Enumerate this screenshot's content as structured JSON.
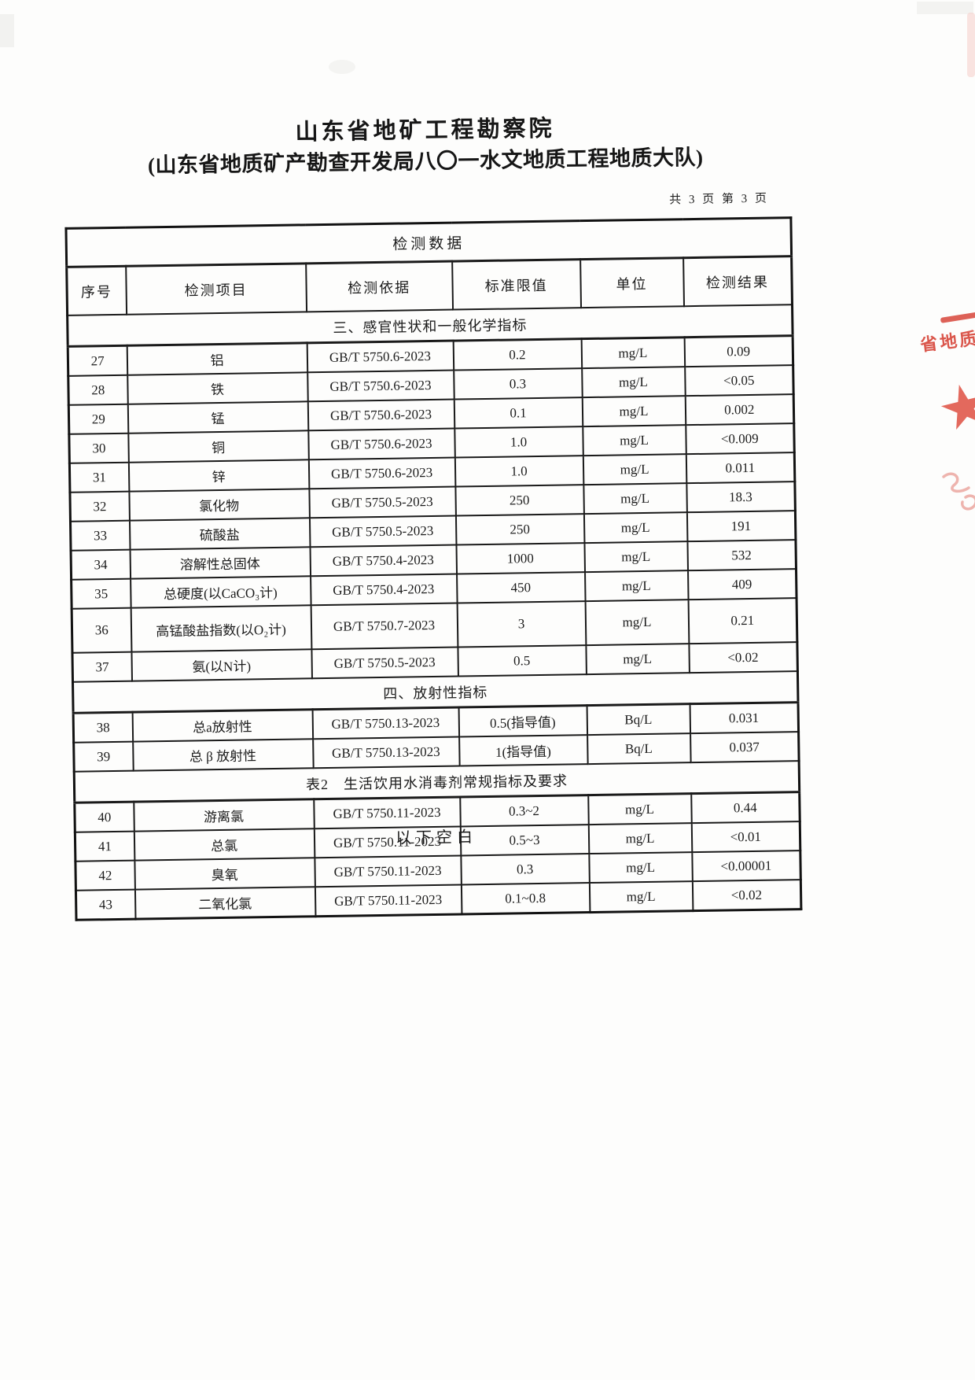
{
  "doc": {
    "org_name": "山东省地矿工程勘察院",
    "org_subtitle": "(山东省地质矿产勘查开发局八〇一水文地质工程地质大队)",
    "page_info": "共 3 页 第 3 页",
    "below_blank_note": "以下空白"
  },
  "table": {
    "caption": "检测数据",
    "columns": [
      "序号",
      "检测项目",
      "检测依据",
      "标准限值",
      "单位",
      "检测结果"
    ],
    "sections": [
      {
        "header": "三、感官性状和一般化学指标",
        "rows": [
          {
            "no": "27",
            "item": "铝",
            "method": "GB/T 5750.6-2023",
            "limit": "0.2",
            "unit": "mg/L",
            "result": "0.09"
          },
          {
            "no": "28",
            "item": "铁",
            "method": "GB/T 5750.6-2023",
            "limit": "0.3",
            "unit": "mg/L",
            "result": "<0.05"
          },
          {
            "no": "29",
            "item": "锰",
            "method": "GB/T 5750.6-2023",
            "limit": "0.1",
            "unit": "mg/L",
            "result": "0.002"
          },
          {
            "no": "30",
            "item": "铜",
            "method": "GB/T 5750.6-2023",
            "limit": "1.0",
            "unit": "mg/L",
            "result": "<0.009"
          },
          {
            "no": "31",
            "item": "锌",
            "method": "GB/T 5750.6-2023",
            "limit": "1.0",
            "unit": "mg/L",
            "result": "0.011"
          },
          {
            "no": "32",
            "item": "氯化物",
            "method": "GB/T 5750.5-2023",
            "limit": "250",
            "unit": "mg/L",
            "result": "18.3"
          },
          {
            "no": "33",
            "item": "硫酸盐",
            "method": "GB/T 5750.5-2023",
            "limit": "250",
            "unit": "mg/L",
            "result": "191"
          },
          {
            "no": "34",
            "item": "溶解性总固体",
            "method": "GB/T 5750.4-2023",
            "limit": "1000",
            "unit": "mg/L",
            "result": "532"
          },
          {
            "no": "35",
            "item": "总硬度(以CaCO₃计)",
            "method": "GB/T 5750.4-2023",
            "limit": "450",
            "unit": "mg/L",
            "result": "409"
          },
          {
            "no": "36",
            "item": "高锰酸盐指数(以O₂计)",
            "method": "GB/T 5750.7-2023",
            "limit": "3",
            "unit": "mg/L",
            "result": "0.21",
            "tall": true
          },
          {
            "no": "37",
            "item": "氨(以N计)",
            "method": "GB/T 5750.5-2023",
            "limit": "0.5",
            "unit": "mg/L",
            "result": "<0.02"
          }
        ]
      },
      {
        "header": "四、放射性指标",
        "rows": [
          {
            "no": "38",
            "item": "总a放射性",
            "method": "GB/T 5750.13-2023",
            "limit": "0.5(指导值)",
            "unit": "Bq/L",
            "result": "0.031"
          },
          {
            "no": "39",
            "item": "总 β 放射性",
            "method": "GB/T 5750.13-2023",
            "limit": "1(指导值)",
            "unit": "Bq/L",
            "result": "0.037"
          }
        ]
      },
      {
        "header": "表2　生活饮用水消毒剂常规指标及要求",
        "rows": [
          {
            "no": "40",
            "item": "游离氯",
            "method": "GB/T 5750.11-2023",
            "limit": "0.3~2",
            "unit": "mg/L",
            "result": "0.44"
          },
          {
            "no": "41",
            "item": "总氯",
            "method": "GB/T 5750.11-2023",
            "limit": "0.5~3",
            "unit": "mg/L",
            "result": "<0.01"
          },
          {
            "no": "42",
            "item": "臭氧",
            "method": "GB/T 5750.11-2023",
            "limit": "0.3",
            "unit": "mg/L",
            "result": "<0.00001"
          },
          {
            "no": "43",
            "item": "二氧化氯",
            "method": "GB/T 5750.11-2023",
            "limit": "0.1~0.8",
            "unit": "mg/L",
            "result": "<0.02"
          }
        ]
      }
    ]
  },
  "stamp": {
    "visible_text": "省地质",
    "color": "#d5392d"
  }
}
